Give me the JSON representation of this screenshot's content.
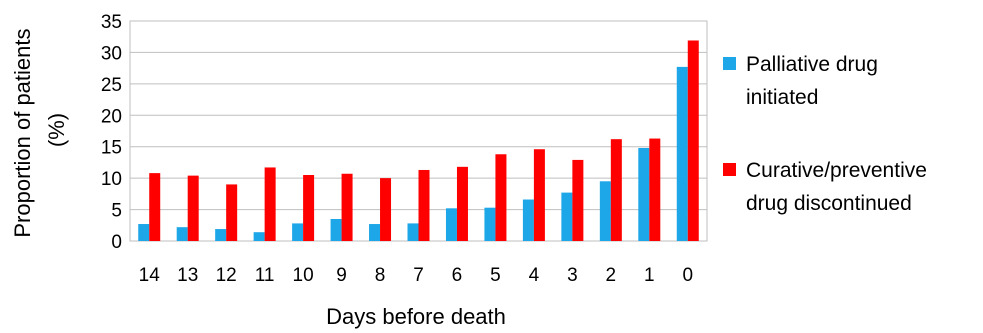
{
  "chart_data": {
    "type": "bar",
    "categories": [
      "14",
      "13",
      "12",
      "11",
      "10",
      "9",
      "8",
      "7",
      "6",
      "5",
      "4",
      "3",
      "2",
      "1",
      "0"
    ],
    "series": [
      {
        "name": "Palliative drug initiated",
        "name_lines": [
          "Palliative drug",
          "initiated"
        ],
        "color": "#1ea7e8",
        "values": [
          2.7,
          2.2,
          1.9,
          1.4,
          2.8,
          3.5,
          2.7,
          2.8,
          5.2,
          5.3,
          6.6,
          7.7,
          9.5,
          14.8,
          27.7
        ]
      },
      {
        "name": "Curative/preventive drug discontinued",
        "name_lines": [
          "Curative/preventive",
          "drug discontinued"
        ],
        "color": "#ff0000",
        "values": [
          10.8,
          10.4,
          9.0,
          11.7,
          10.5,
          10.7,
          10.0,
          11.3,
          11.8,
          13.8,
          14.6,
          12.9,
          16.2,
          16.3,
          31.9
        ]
      }
    ],
    "title": "",
    "xlabel": "Days before death",
    "ylabel_lines": [
      "Proportion  of patients",
      "(%)"
    ],
    "ylim": [
      0,
      35
    ],
    "yticks": [
      "0",
      "5",
      "10",
      "15",
      "20",
      "25",
      "30",
      "35"
    ],
    "grid": true,
    "legend_position": "right"
  }
}
